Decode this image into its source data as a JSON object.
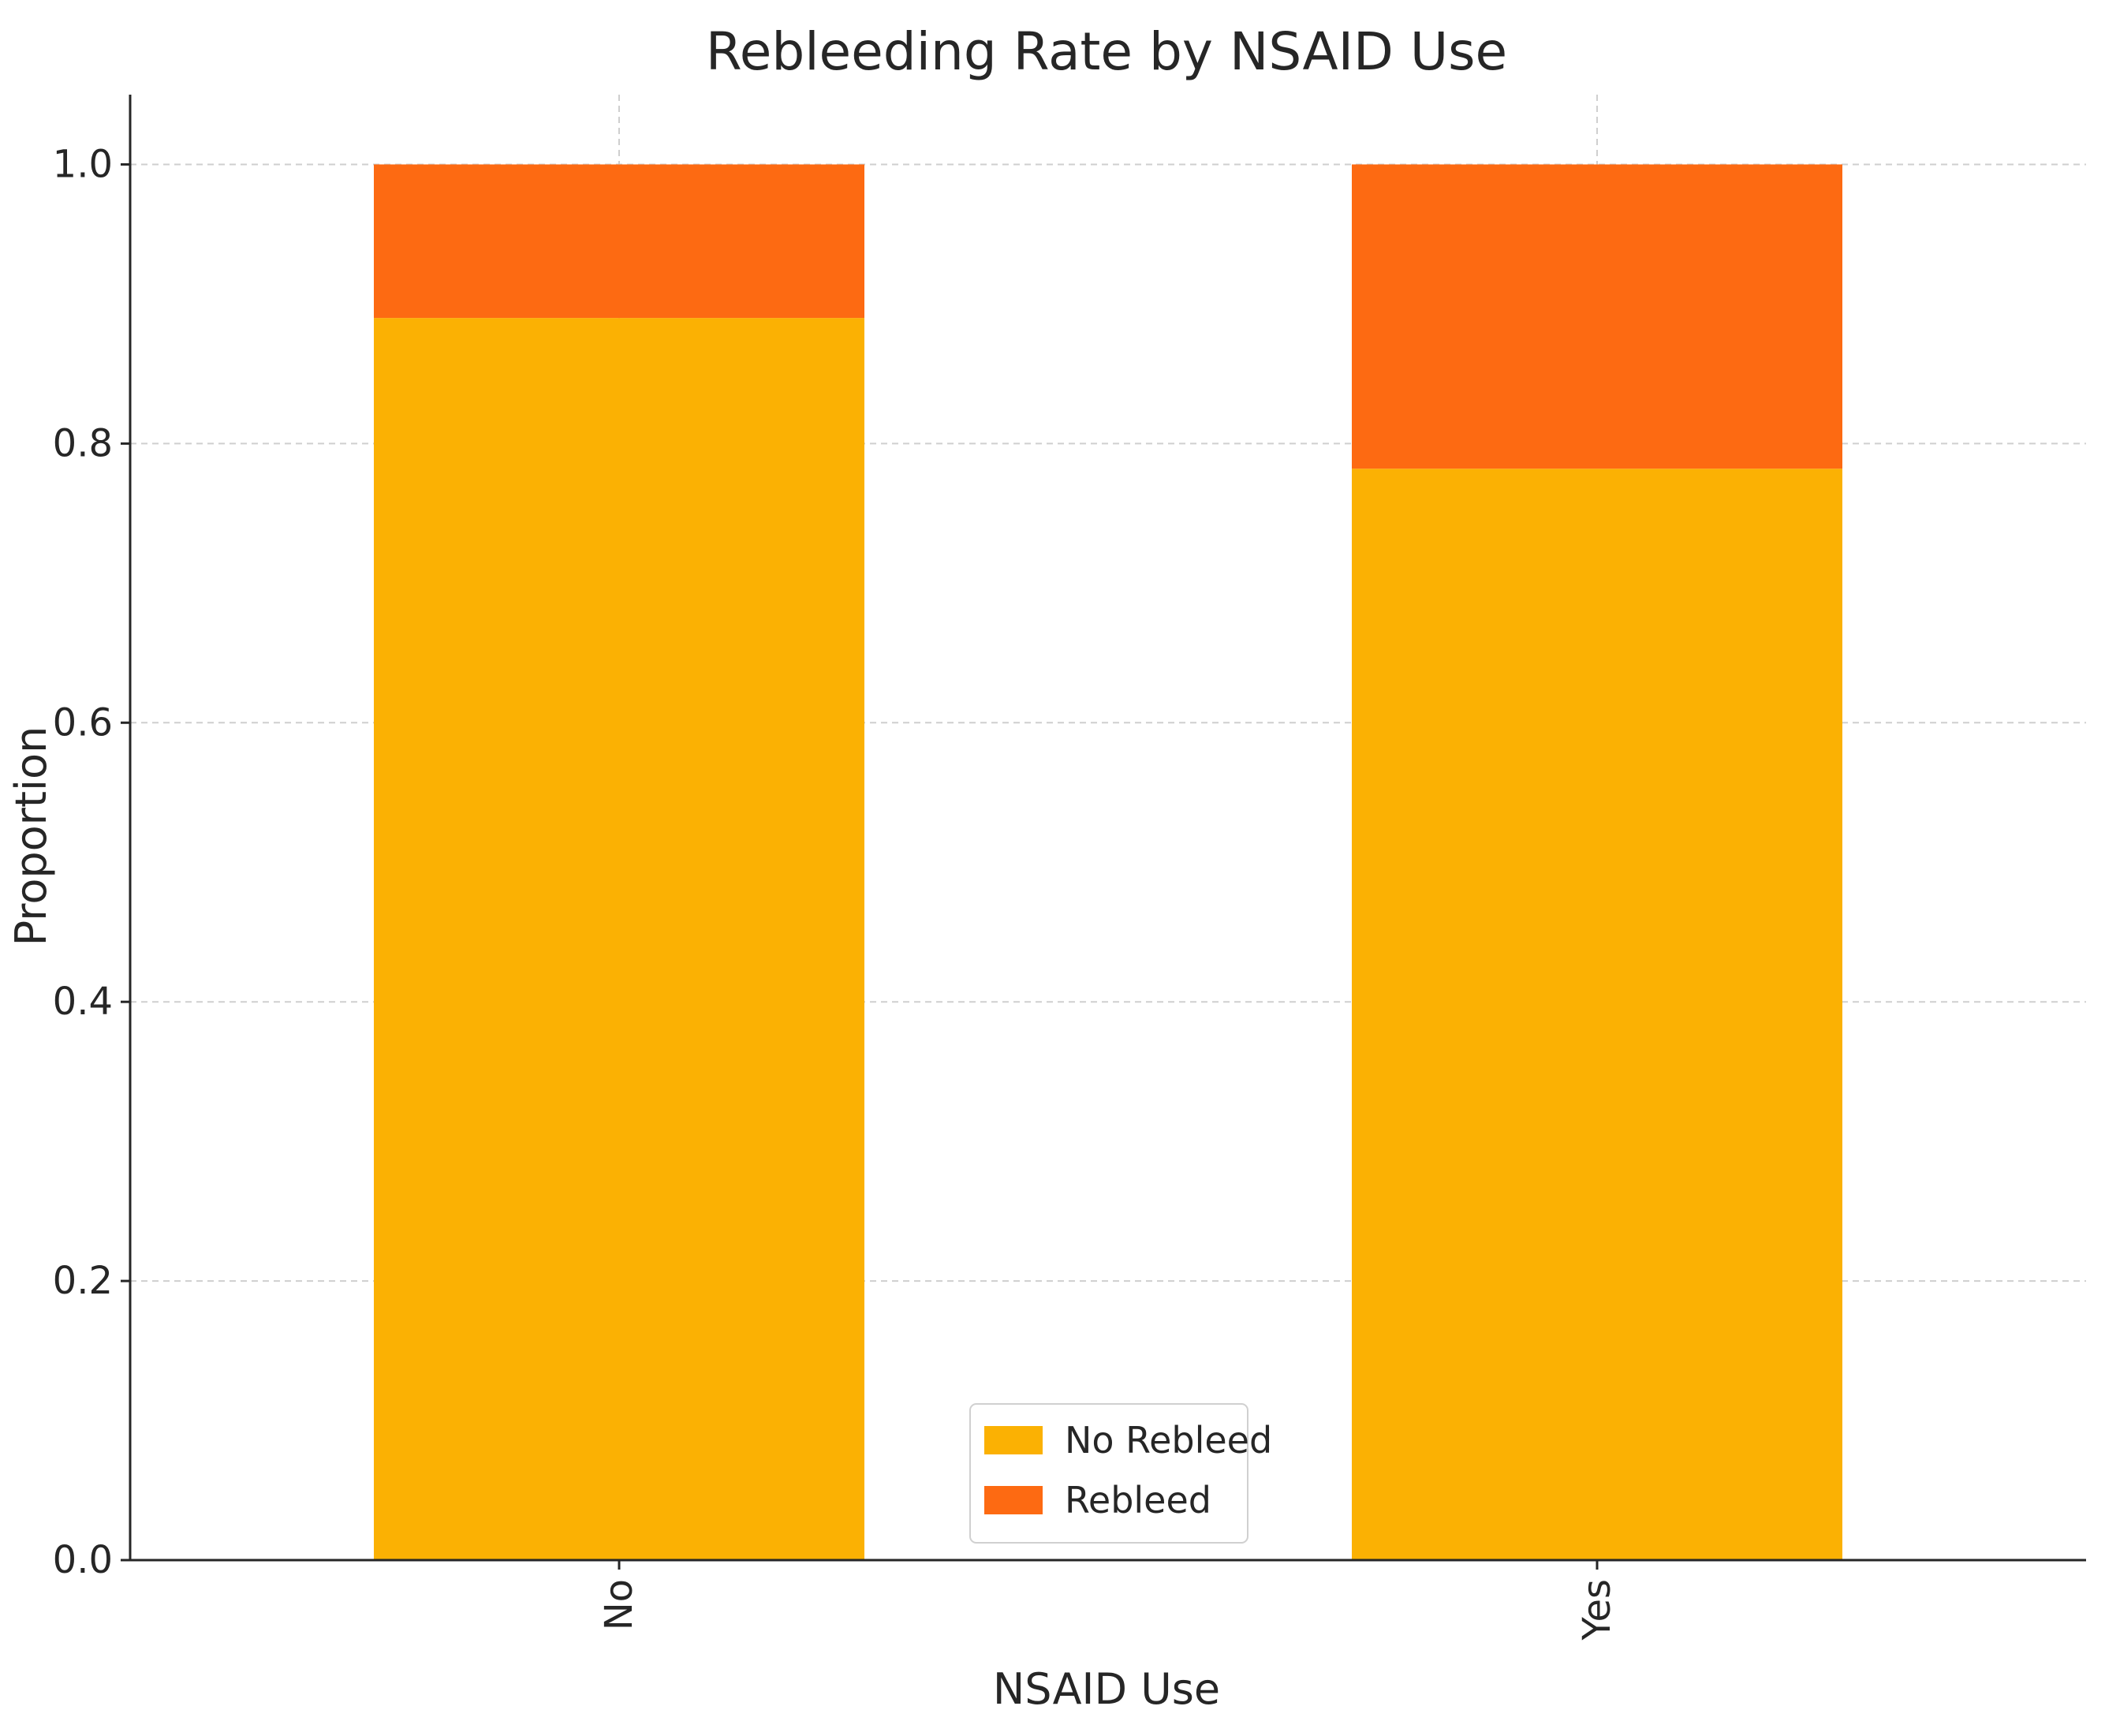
{
  "chart_data": {
    "type": "bar",
    "stacked": true,
    "title": "Rebleeding Rate by NSAID Use",
    "xlabel": "NSAID Use",
    "ylabel": "Proportion",
    "categories": [
      "No",
      "Yes"
    ],
    "series": [
      {
        "name": "No Rebleed",
        "color": "#FBB103",
        "values": [
          0.89,
          0.782
        ]
      },
      {
        "name": "Rebleed",
        "color": "#FD6A12",
        "values": [
          0.11,
          0.218
        ]
      }
    ],
    "ylim": [
      0,
      1.05
    ],
    "yticks": [
      0.0,
      0.2,
      0.4,
      0.6,
      0.8,
      1.0
    ],
    "ytick_labels": [
      "0.0",
      "0.2",
      "0.4",
      "0.6",
      "0.8",
      "1.0"
    ],
    "grid": true,
    "legend_position": "lower-center"
  }
}
